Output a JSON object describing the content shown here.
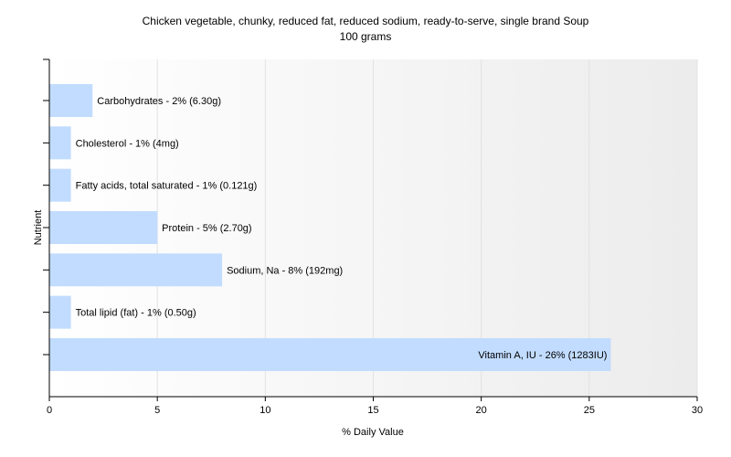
{
  "chart_data": {
    "type": "bar",
    "orientation": "horizontal",
    "title": "Chicken vegetable, chunky, reduced fat, reduced sodium, ready-to-serve, single brand Soup",
    "subtitle": "100 grams",
    "xlabel": "% Daily Value",
    "ylabel": "Nutrient",
    "xlim": [
      0,
      30
    ],
    "xticks": [
      0,
      5,
      10,
      15,
      20,
      25,
      30
    ],
    "grid": "vertical",
    "bar_color": "#c2dcff",
    "categories": [
      "Carbohydrates",
      "Cholesterol",
      "Fatty acids, total saturated",
      "Protein",
      "Sodium, Na",
      "Total lipid (fat)",
      "Vitamin A, IU"
    ],
    "values": [
      2,
      1,
      1,
      5,
      8,
      1,
      26
    ],
    "labels": [
      "Carbohydrates - 2% (6.30g)",
      "Cholesterol - 1% (4mg)",
      "Fatty acids, total saturated - 1% (0.121g)",
      "Protein - 5% (2.70g)",
      "Sodium, Na - 8% (192mg)",
      "Total lipid (fat) - 1% (0.50g)",
      "Vitamin A, IU - 26% (1283IU)"
    ]
  }
}
